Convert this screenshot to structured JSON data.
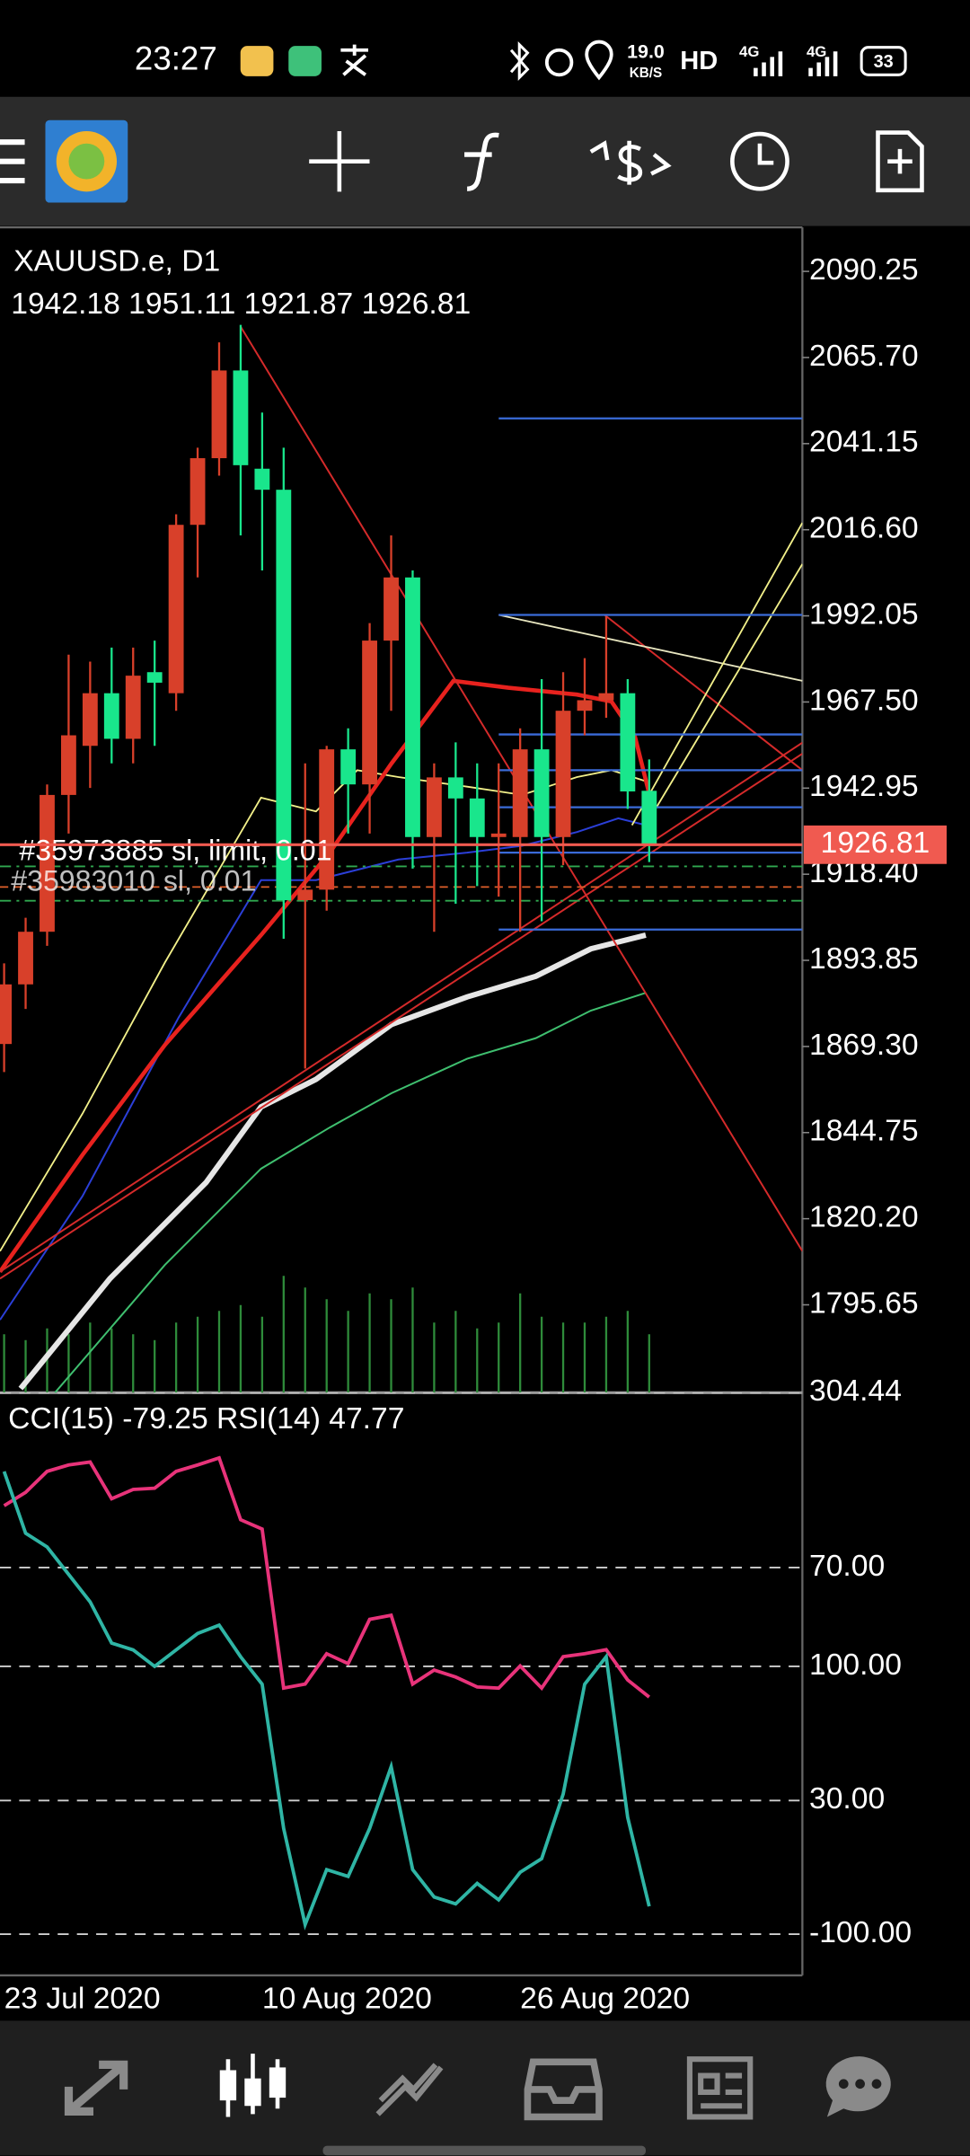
{
  "status_bar": {
    "time": "23:27",
    "net_speed": "19.0",
    "net_unit": "KB/S",
    "hd": "HD",
    "signal": "4G",
    "signal2": "4G",
    "battery": "33"
  },
  "chart_data": [
    {
      "type": "candlestick",
      "title": "XAUUSD.e, D1",
      "subtitle": "1942.18 1951.11 1921.87 1926.81",
      "categories": [
        "23 Jul 2020",
        null,
        null,
        null,
        null,
        null,
        null,
        null,
        null,
        null,
        null,
        null,
        "10 Aug 2020",
        null,
        null,
        null,
        null,
        null,
        null,
        null,
        null,
        null,
        null,
        null,
        "26 Aug 2020",
        null,
        null,
        null,
        null,
        null,
        null
      ],
      "open": [
        1870,
        1887,
        1902,
        1941,
        1955,
        1970,
        1957,
        1976,
        1970,
        2018,
        2037,
        2062,
        2034,
        2028,
        1911,
        1914,
        1954,
        1944,
        1985,
        2003,
        1929,
        1946,
        1940,
        1929,
        1929,
        1954,
        1929,
        1965,
        1968,
        1970,
        1942.18
      ],
      "high": [
        1893,
        1906,
        1944,
        1981,
        1979,
        1983,
        1983,
        1985,
        2021,
        2040,
        2070,
        2075,
        2050,
        2040,
        1950,
        1955,
        1960,
        1990,
        2015,
        2005,
        1950,
        1956,
        1950,
        1950,
        1960,
        1974,
        1976,
        1980,
        1992,
        1974,
        1951.11
      ],
      "low": [
        1862,
        1880,
        1898,
        1930,
        1943,
        1950,
        1950,
        1955,
        1965,
        2003,
        2032,
        2015,
        2005,
        1900,
        1863,
        1908,
        1930,
        1930,
        1965,
        1920,
        1902,
        1910,
        1915,
        1912,
        1902,
        1905,
        1921,
        1958,
        1963,
        1937,
        1921.87
      ],
      "close": [
        1887,
        1902,
        1941,
        1958,
        1970,
        1957,
        1975,
        1973,
        2018,
        2037,
        2062,
        2035,
        2028,
        1911,
        1914,
        1954,
        1944,
        1985,
        2003,
        1929,
        1946,
        1940,
        1929,
        1930,
        1954,
        1929,
        1965,
        1968,
        1970,
        1942,
        1926.81
      ],
      "up_color": "#d8402a",
      "down_color": "#19e68c",
      "ylim": [
        1770.6,
        2102.8
      ],
      "yticks": [
        2090.25,
        {
          "value": 2065.7,
          "label": "2065.70"
        },
        2041.15,
        {
          "value": 2016.6,
          "label": "2016.60"
        },
        1992.05,
        {
          "value": 1967.5,
          "label": "1967.50"
        },
        1942.95,
        {
          "value": 1918.4,
          "label": "1918.40"
        },
        1893.85,
        {
          "value": 1869.3,
          "label": "1869.30"
        },
        1844.75,
        {
          "value": 1820.2,
          "label": "1820.20"
        },
        1795.65
      ],
      "last_price": 1926.81,
      "last_price_color": "#f05a50",
      "order_labels": [
        "#35973885 sl, limit, 0.01",
        "#35983010 sl, 0.01"
      ]
    },
    {
      "type": "line",
      "title": "CCI(15) -79.25 RSI(14) 47.77",
      "series": [
        {
          "name": "RSI(14)",
          "color": "#e8337a",
          "values": [
            80.6,
            82.9,
            86.5,
            87.6,
            88.1,
            81.8,
            83.4,
            83.6,
            86.5,
            87.6,
            88.8,
            78.2,
            76.6,
            49.3,
            50.0,
            55.2,
            53.5,
            61.1,
            61.8,
            50.0,
            52.4,
            51.2,
            49.5,
            49.3,
            53.1,
            49.3,
            54.7,
            55.2,
            55.9,
            50.7,
            47.77
          ]
        },
        {
          "name": "CCI(15)",
          "color": "#2fb5a5",
          "axis": "y2",
          "values": [
            245.6,
            199.5,
            189.2,
            168.7,
            148.2,
            117.4,
            112.3,
            100,
            112.3,
            124.6,
            130.8,
            107.2,
            86.7,
            -21.0,
            -92.8,
            -51.8,
            -56.9,
            -21.0,
            25.1,
            -51.8,
            -72.3,
            -77.4,
            -62.1,
            -74.4,
            -53.8,
            -43.6,
            4.6,
            86.7,
            107.2,
            -12.8,
            -79.25
          ]
        }
      ],
      "ylim": [
        0,
        100
      ],
      "yticks": [
        {
          "value": 70,
          "label": "70.00"
        },
        {
          "value": 30,
          "label": "30.00"
        }
      ],
      "y2lim": [
        -130.8,
        304.44
      ],
      "y2ticks": [
        304.44,
        {
          "value": 100,
          "label": "100.00"
        },
        {
          "value": -100,
          "label": "-100.00"
        }
      ],
      "grid": true
    }
  ]
}
